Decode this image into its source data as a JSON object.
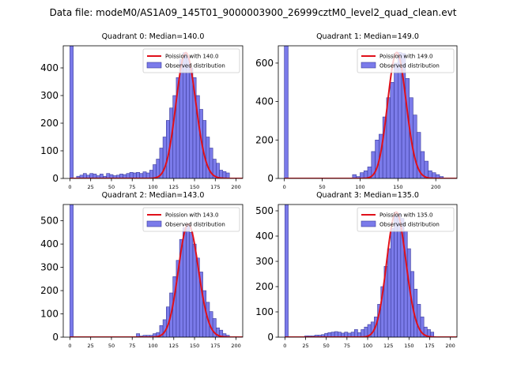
{
  "colors": {
    "bar_fill": "#7b7bea",
    "bar_edge": "#3a3a9a",
    "poisson_line": "#e0101a",
    "axis": "#000000",
    "background": "#ffffff"
  },
  "chart_data": {
    "type": "bar",
    "suptitle": "Data file: modeM0/AS1A09_145T01_9000003900_26999cztM0_level2_quad_clean.evt",
    "panels": [
      {
        "title": "Quadrant 0: Median=140.0",
        "xlim": [
          -8,
          208
        ],
        "ylim": [
          0,
          480
        ],
        "xticks": [
          "0",
          "25",
          "50",
          "75",
          "100",
          "125",
          "150",
          "175",
          "200"
        ],
        "yticks": [
          "0",
          "100",
          "200",
          "300",
          "400"
        ],
        "legend": {
          "line": "Poission with 140.0",
          "bars": "Observed distribution",
          "placement": "top-right"
        },
        "median": 140.0,
        "poisson_peak": 455,
        "bin_width": 4,
        "bar_left_edges": [
          0,
          4,
          8,
          12,
          16,
          20,
          24,
          28,
          32,
          36,
          40,
          44,
          48,
          52,
          56,
          60,
          64,
          68,
          72,
          76,
          80,
          84,
          88,
          92,
          96,
          100,
          104,
          108,
          112,
          116,
          120,
          124,
          128,
          132,
          136,
          140,
          144,
          148,
          152,
          156,
          160,
          164,
          168,
          172,
          176,
          180,
          184,
          188
        ],
        "bar_values": [
          480,
          2,
          8,
          12,
          18,
          12,
          18,
          16,
          10,
          16,
          8,
          18,
          14,
          10,
          12,
          16,
          14,
          18,
          22,
          20,
          22,
          18,
          24,
          20,
          30,
          50,
          70,
          110,
          150,
          210,
          255,
          300,
          365,
          430,
          455,
          440,
          400,
          365,
          300,
          250,
          210,
          150,
          110,
          70,
          55,
          30,
          25,
          20
        ]
      },
      {
        "title": "Quadrant 1: Median=149.0",
        "xlim": [
          -8,
          228
        ],
        "ylim": [
          0,
          690
        ],
        "xticks": [
          "0",
          "50",
          "100",
          "150",
          "200"
        ],
        "yticks": [
          "0",
          "200",
          "400",
          "600"
        ],
        "legend": {
          "line": "Poission with 149.0",
          "bars": "Observed distribution",
          "placement": "top-right"
        },
        "median": 149.0,
        "poisson_peak": 655,
        "bin_width": 5,
        "bar_left_edges": [
          0,
          90,
          95,
          100,
          105,
          110,
          115,
          120,
          125,
          130,
          135,
          140,
          145,
          150,
          155,
          160,
          165,
          170,
          175,
          180,
          185,
          190,
          195,
          200,
          205
        ],
        "bar_values": [
          690,
          20,
          10,
          30,
          40,
          60,
          140,
          200,
          230,
          320,
          420,
          500,
          600,
          655,
          650,
          520,
          420,
          330,
          240,
          140,
          90,
          40,
          30,
          20,
          10
        ]
      },
      {
        "title": "Quadrant 2: Median=143.0",
        "xlim": [
          -8,
          208
        ],
        "ylim": [
          0,
          570
        ],
        "xticks": [
          "0",
          "25",
          "50",
          "75",
          "100",
          "125",
          "150",
          "175",
          "200"
        ],
        "yticks": [
          "0",
          "100",
          "200",
          "300",
          "400",
          "500"
        ],
        "legend": {
          "line": "Poission with 143.0",
          "bars": "Observed distribution",
          "placement": "top-right"
        },
        "median": 143.0,
        "poisson_peak": 485,
        "bin_width": 4,
        "bar_left_edges": [
          0,
          80,
          84,
          88,
          92,
          96,
          100,
          104,
          108,
          112,
          116,
          120,
          124,
          128,
          132,
          136,
          140,
          144,
          148,
          152,
          156,
          160,
          164,
          168,
          172,
          176,
          180,
          184,
          188
        ],
        "bar_values": [
          570,
          15,
          5,
          8,
          8,
          8,
          15,
          20,
          50,
          75,
          130,
          190,
          260,
          330,
          420,
          470,
          480,
          450,
          400,
          340,
          280,
          200,
          150,
          110,
          80,
          40,
          30,
          15,
          8
        ]
      },
      {
        "title": "Quadrant 3: Median=135.0",
        "xlim": [
          -8,
          208
        ],
        "ylim": [
          0,
          525
        ],
        "xticks": [
          "0",
          "25",
          "50",
          "75",
          "100",
          "125",
          "150",
          "175",
          "200"
        ],
        "yticks": [
          "0",
          "100",
          "200",
          "300",
          "400",
          "500"
        ],
        "legend": {
          "line": "Poission with 135.0",
          "bars": "Observed distribution",
          "placement": "top-right"
        },
        "median": 135.0,
        "poisson_peak": 495,
        "bin_width": 4,
        "bar_left_edges": [
          0,
          24,
          28,
          32,
          36,
          40,
          44,
          48,
          52,
          56,
          60,
          64,
          68,
          72,
          76,
          80,
          84,
          88,
          92,
          96,
          100,
          104,
          108,
          112,
          116,
          120,
          124,
          128,
          132,
          136,
          140,
          144,
          148,
          152,
          156,
          160,
          164,
          168,
          172,
          176
        ],
        "bar_values": [
          525,
          5,
          5,
          5,
          8,
          8,
          10,
          15,
          18,
          20,
          22,
          20,
          16,
          20,
          16,
          20,
          30,
          18,
          30,
          40,
          50,
          60,
          80,
          130,
          200,
          280,
          350,
          430,
          480,
          490,
          470,
          420,
          350,
          260,
          190,
          130,
          80,
          40,
          30,
          20
        ]
      }
    ]
  }
}
